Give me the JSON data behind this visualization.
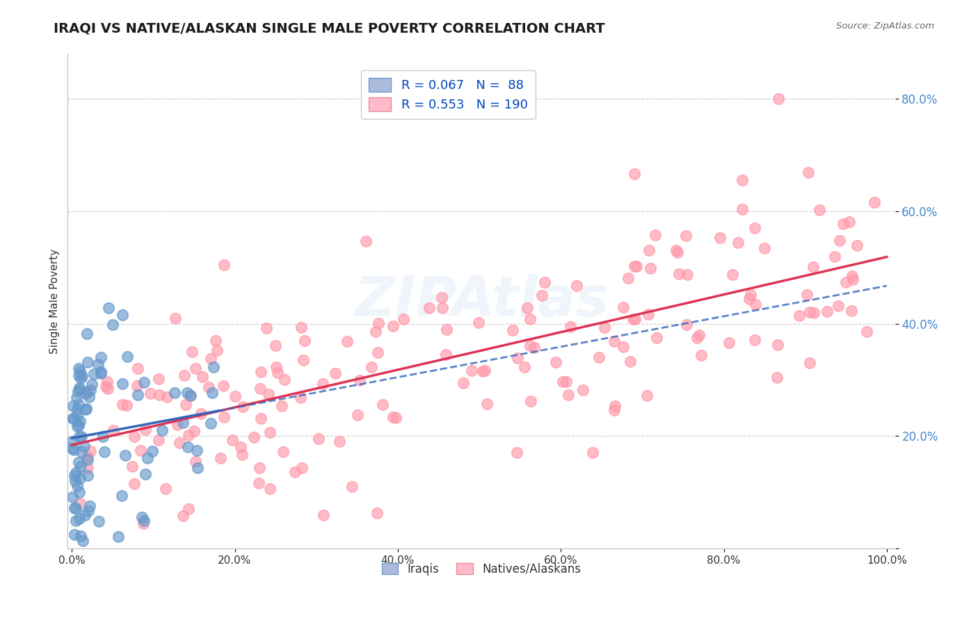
{
  "title": "IRAQI VS NATIVE/ALASKAN SINGLE MALE POVERTY CORRELATION CHART",
  "source_text": "Source: ZipAtlas.com",
  "ylabel": "Single Male Poverty",
  "watermark": "ZIPAtlas",
  "legend_label1": "R = 0.067   N =  88",
  "legend_label2": "R = 0.553   N = 190",
  "legend_group1": "Iraqis",
  "legend_group2": "Natives/Alaskans",
  "title_color": "#1a1a1a",
  "source_color": "#666666",
  "ylabel_color": "#333333",
  "blue_scatter_color": "#6699cc",
  "pink_scatter_color": "#ff99aa",
  "blue_line_color": "#3366bb",
  "pink_line_color": "#dd3355",
  "background_color": "#ffffff",
  "grid_color": "#cccccc",
  "tick_label_color": "#4488cc",
  "x_tick_labels": [
    "0.0%",
    "20.0%",
    "40.0%",
    "60.0%",
    "80.0%",
    "100.0%"
  ],
  "y_tick_labels": [
    "",
    "20.0%",
    "40.0%",
    "60.0%",
    "80.0%"
  ]
}
